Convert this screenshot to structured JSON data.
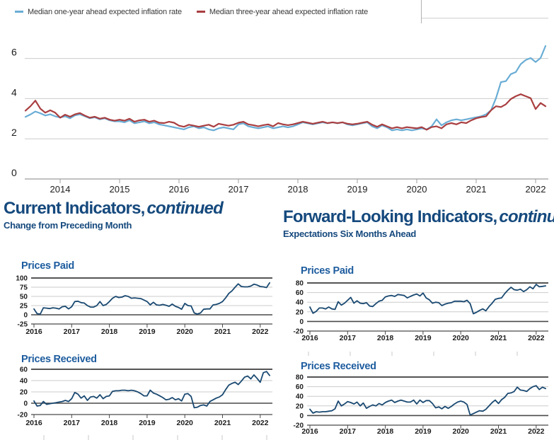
{
  "colors": {
    "one_year_line": "#6aadd5",
    "three_year_line": "#a93e40",
    "index_line": "#1a4971",
    "heading": "#15497d",
    "chart_title": "#1d5c9e",
    "grid_light": "#cbcbcb",
    "axis_gray": "#9d9d9d",
    "axis_dark": "#4a4a4a"
  },
  "legend": {
    "items": [
      {
        "label": "Median one-year ahead expected inflation rate",
        "color": "#6aadd5"
      },
      {
        "label": "Median three-year ahead expected inflation rate",
        "color": "#a93e40"
      }
    ]
  },
  "sections": {
    "left": {
      "title_bold": "Current Indicators,",
      "title_italic": "continued",
      "subtitle": "Change from Preceding Month"
    },
    "right": {
      "title_bold": "Forward-Looking Indicators,",
      "title_italic": "continued",
      "subtitle": "Expectations Six Months Ahead"
    }
  },
  "chart_data": [
    {
      "id": "inflation-expectations",
      "type": "line",
      "title": "",
      "ylim": [
        0,
        8
      ],
      "yticks": [
        0,
        2,
        4,
        6
      ],
      "gridlines": [
        2,
        4,
        6,
        8
      ],
      "xticks": [
        2014,
        2015,
        2016,
        2017,
        2018,
        2019,
        2020,
        2021,
        2022
      ],
      "x_start": 2013.417,
      "x_step": 0.08333,
      "legend_position": "top-left",
      "series": [
        {
          "name": "Median one-year ahead expected inflation rate",
          "color": "#6aadd5",
          "values": [
            3.09,
            3.21,
            3.36,
            3.27,
            3.16,
            3.22,
            3.12,
            3.06,
            3.12,
            3.02,
            3.17,
            3.22,
            3.12,
            3.02,
            3.07,
            2.97,
            3.02,
            2.92,
            2.87,
            2.87,
            2.82,
            2.92,
            2.77,
            2.82,
            2.87,
            2.77,
            2.82,
            2.72,
            2.67,
            2.62,
            2.57,
            2.52,
            2.47,
            2.57,
            2.62,
            2.52,
            2.57,
            2.47,
            2.42,
            2.52,
            2.57,
            2.52,
            2.47,
            2.72,
            2.77,
            2.62,
            2.57,
            2.52,
            2.57,
            2.62,
            2.52,
            2.57,
            2.62,
            2.57,
            2.62,
            2.72,
            2.82,
            2.77,
            2.72,
            2.77,
            2.82,
            2.77,
            2.82,
            2.77,
            2.82,
            2.72,
            2.67,
            2.72,
            2.77,
            2.82,
            2.62,
            2.52,
            2.67,
            2.57,
            2.42,
            2.47,
            2.42,
            2.47,
            2.42,
            2.47,
            2.52,
            2.47,
            2.62,
            2.97,
            2.67,
            2.82,
            2.92,
            2.97,
            2.92,
            2.97,
            3.02,
            3.07,
            3.12,
            3.22,
            3.42,
            4.02,
            4.82,
            4.87,
            5.22,
            5.32,
            5.72,
            5.92,
            6.02,
            5.82,
            6.02,
            6.62
          ]
        },
        {
          "name": "Median three-year ahead expected inflation rate",
          "color": "#a93e40",
          "values": [
            3.4,
            3.62,
            3.9,
            3.5,
            3.3,
            3.42,
            3.3,
            3.05,
            3.2,
            3.1,
            3.22,
            3.28,
            3.15,
            3.05,
            3.1,
            3.0,
            3.05,
            2.95,
            2.9,
            2.95,
            2.9,
            3.0,
            2.85,
            2.92,
            2.95,
            2.85,
            2.9,
            2.8,
            2.78,
            2.85,
            2.8,
            2.65,
            2.6,
            2.7,
            2.65,
            2.6,
            2.65,
            2.7,
            2.6,
            2.75,
            2.7,
            2.65,
            2.7,
            2.8,
            2.85,
            2.72,
            2.68,
            2.62,
            2.68,
            2.72,
            2.62,
            2.78,
            2.72,
            2.68,
            2.72,
            2.78,
            2.85,
            2.8,
            2.75,
            2.8,
            2.85,
            2.78,
            2.82,
            2.78,
            2.82,
            2.75,
            2.72,
            2.75,
            2.8,
            2.85,
            2.7,
            2.6,
            2.72,
            2.62,
            2.52,
            2.58,
            2.52,
            2.58,
            2.55,
            2.52,
            2.58,
            2.45,
            2.58,
            2.62,
            2.52,
            2.72,
            2.78,
            2.72,
            2.82,
            2.78,
            2.92,
            3.02,
            3.08,
            3.12,
            3.42,
            3.62,
            3.58,
            3.72,
            3.98,
            4.12,
            4.22,
            4.12,
            4.02,
            3.48,
            3.78,
            3.62
          ]
        }
      ]
    },
    {
      "id": "current-prices-paid",
      "type": "line",
      "title": "Prices Paid",
      "section": "Current Indicators",
      "ylim": [
        -25,
        100
      ],
      "yticks": [
        100,
        75,
        50,
        25,
        0,
        -25
      ],
      "xticks": [
        2016,
        2017,
        2018,
        2019,
        2020,
        2021,
        2022
      ],
      "x_start": 2016.0,
      "x_step": 0.08333,
      "series": [
        {
          "name": "Prices Paid (change from preceding month)",
          "color": "#1a4971",
          "values": [
            16,
            3,
            2,
            19,
            18,
            17,
            19,
            18,
            16,
            22,
            23,
            16,
            22,
            36,
            37,
            33,
            32,
            25,
            21,
            21,
            25,
            36,
            25,
            28,
            36,
            45,
            50,
            47,
            48,
            52,
            50,
            45,
            46,
            45,
            44,
            40,
            36,
            27,
            34,
            27,
            26,
            28,
            26,
            23,
            29,
            23,
            20,
            15,
            31,
            25,
            24,
            5,
            2,
            5,
            15,
            16,
            16,
            27,
            28,
            31,
            36,
            46,
            58,
            65,
            75,
            84,
            77,
            76,
            76,
            78,
            83,
            81,
            77,
            76,
            74,
            87
          ]
        }
      ]
    },
    {
      "id": "current-prices-received",
      "type": "line",
      "title": "Prices Received",
      "section": "Current Indicators",
      "ylim": [
        -20,
        60
      ],
      "yticks": [
        60,
        40,
        20,
        0,
        -20
      ],
      "xticks": [
        2016,
        2017,
        2018,
        2019,
        2020,
        2021,
        2022
      ],
      "x_start": 2016.0,
      "x_step": 0.08333,
      "series": [
        {
          "name": "Prices Received (change from preceding month)",
          "color": "#1a4971",
          "values": [
            4,
            -5,
            -4,
            3,
            -2,
            -1,
            0,
            1,
            2,
            3,
            5,
            3,
            8,
            19,
            16,
            9,
            13,
            5,
            11,
            12,
            9,
            15,
            8,
            12,
            13,
            21,
            22,
            22,
            23,
            23,
            22,
            23,
            22,
            20,
            17,
            13,
            13,
            23,
            18,
            16,
            13,
            10,
            6,
            7,
            10,
            6,
            8,
            4,
            16,
            17,
            12,
            -8,
            -7,
            -4,
            -3,
            -5,
            3,
            6,
            9,
            11,
            15,
            24,
            32,
            35,
            37,
            33,
            39,
            46,
            48,
            43,
            50,
            44,
            37,
            54,
            56,
            49
          ]
        }
      ]
    },
    {
      "id": "expected-prices-paid",
      "type": "line",
      "title": "Prices Paid",
      "section": "Forward-Looking Indicators",
      "ylim": [
        -20,
        80
      ],
      "yticks": [
        80,
        60,
        40,
        20,
        0,
        -20
      ],
      "xticks": [
        2016,
        2017,
        2018,
        2019,
        2020,
        2021,
        2022
      ],
      "x_start": 2016.0,
      "x_step": 0.08333,
      "series": [
        {
          "name": "Prices Paid (expectations six months ahead)",
          "color": "#1a4971",
          "values": [
            30,
            17,
            21,
            28,
            28,
            26,
            30,
            26,
            25,
            41,
            34,
            38,
            44,
            50,
            38,
            43,
            38,
            37,
            39,
            32,
            31,
            37,
            42,
            44,
            51,
            53,
            54,
            52,
            56,
            55,
            54,
            49,
            52,
            55,
            57,
            53,
            59,
            49,
            45,
            38,
            40,
            39,
            33,
            36,
            38,
            39,
            42,
            42,
            42,
            41,
            44,
            37,
            16,
            19,
            23,
            26,
            22,
            31,
            38,
            46,
            48,
            49,
            58,
            65,
            71,
            66,
            65,
            67,
            62,
            66,
            72,
            68,
            77,
            72,
            73,
            74
          ]
        }
      ]
    },
    {
      "id": "expected-prices-received",
      "type": "line",
      "title": "Prices Received",
      "section": "Forward-Looking Indicators",
      "ylim": [
        -20,
        80
      ],
      "yticks": [
        80,
        60,
        40,
        20,
        0,
        -20
      ],
      "xticks": [
        2016,
        2017,
        2018,
        2019,
        2020,
        2021,
        2022
      ],
      "x_start": 2016.0,
      "x_step": 0.08333,
      "series": [
        {
          "name": "Prices Received (expectations six months ahead)",
          "color": "#1a4971",
          "values": [
            13,
            5,
            8,
            7,
            8,
            8,
            9,
            10,
            14,
            30,
            20,
            24,
            29,
            27,
            24,
            28,
            20,
            26,
            15,
            19,
            22,
            20,
            25,
            22,
            27,
            30,
            32,
            27,
            30,
            32,
            30,
            28,
            28,
            32,
            24,
            32,
            27,
            31,
            31,
            25,
            16,
            18,
            14,
            19,
            15,
            19,
            24,
            28,
            30,
            28,
            23,
            1,
            4,
            7,
            10,
            9,
            13,
            20,
            27,
            32,
            25,
            33,
            38,
            46,
            47,
            50,
            59,
            53,
            52,
            50,
            56,
            60,
            62,
            54,
            59,
            56
          ]
        }
      ]
    }
  ]
}
